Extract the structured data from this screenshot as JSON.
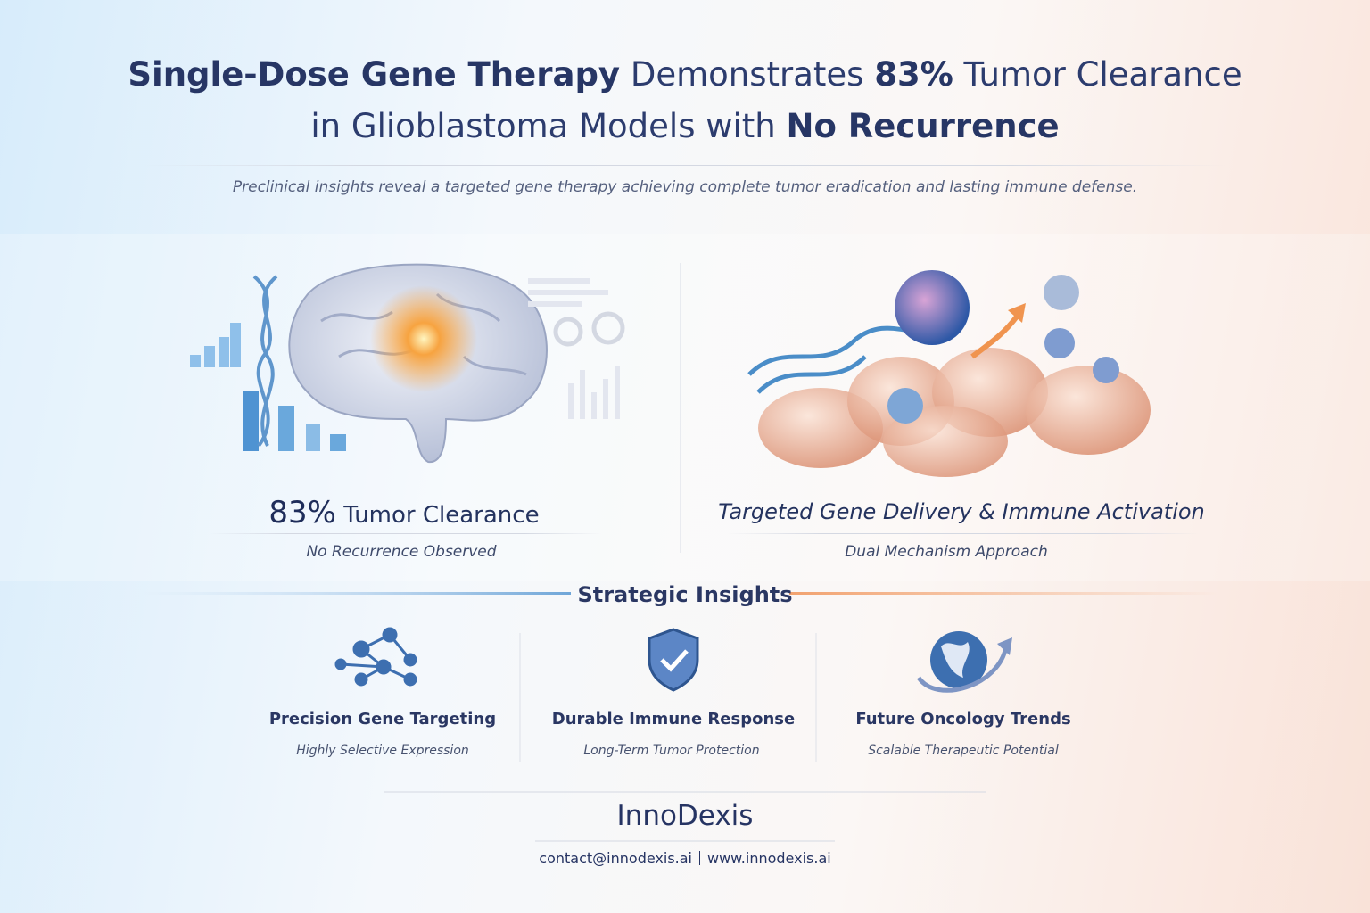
{
  "header": {
    "title": {
      "line1": [
        "Single-Dose Gene Therapy",
        "Demonstrates",
        "83%",
        "Tumor Clearance"
      ],
      "line2": [
        "in Glioblastoma Models with",
        "No Recurrence"
      ]
    },
    "subtitle": "Preclinical insights reveal a targeted gene therapy achieving complete tumor eradication and lasting immune defense."
  },
  "panels": [
    {
      "stat": "83%",
      "headline": "Tumor Clearance",
      "caption": "No Recurrence Observed"
    },
    {
      "headline": "Targeted Gene Delivery & Immune Activation",
      "caption": "Dual Mechanism Approach"
    }
  ],
  "insights": {
    "title": "Strategic Insights",
    "items": [
      {
        "title": "Precision Gene Targeting",
        "caption": "Highly Selective Expression"
      },
      {
        "title": "Durable Immune Response",
        "caption": "Long-Term Tumor Protection"
      },
      {
        "title": "Future Oncology Trends",
        "caption": "Scalable Therapeutic Potential"
      }
    ]
  },
  "footer": {
    "brand": "InnoDexis",
    "contact": [
      "contact@innodexis.ai",
      "www.innodexis.ai"
    ]
  }
}
